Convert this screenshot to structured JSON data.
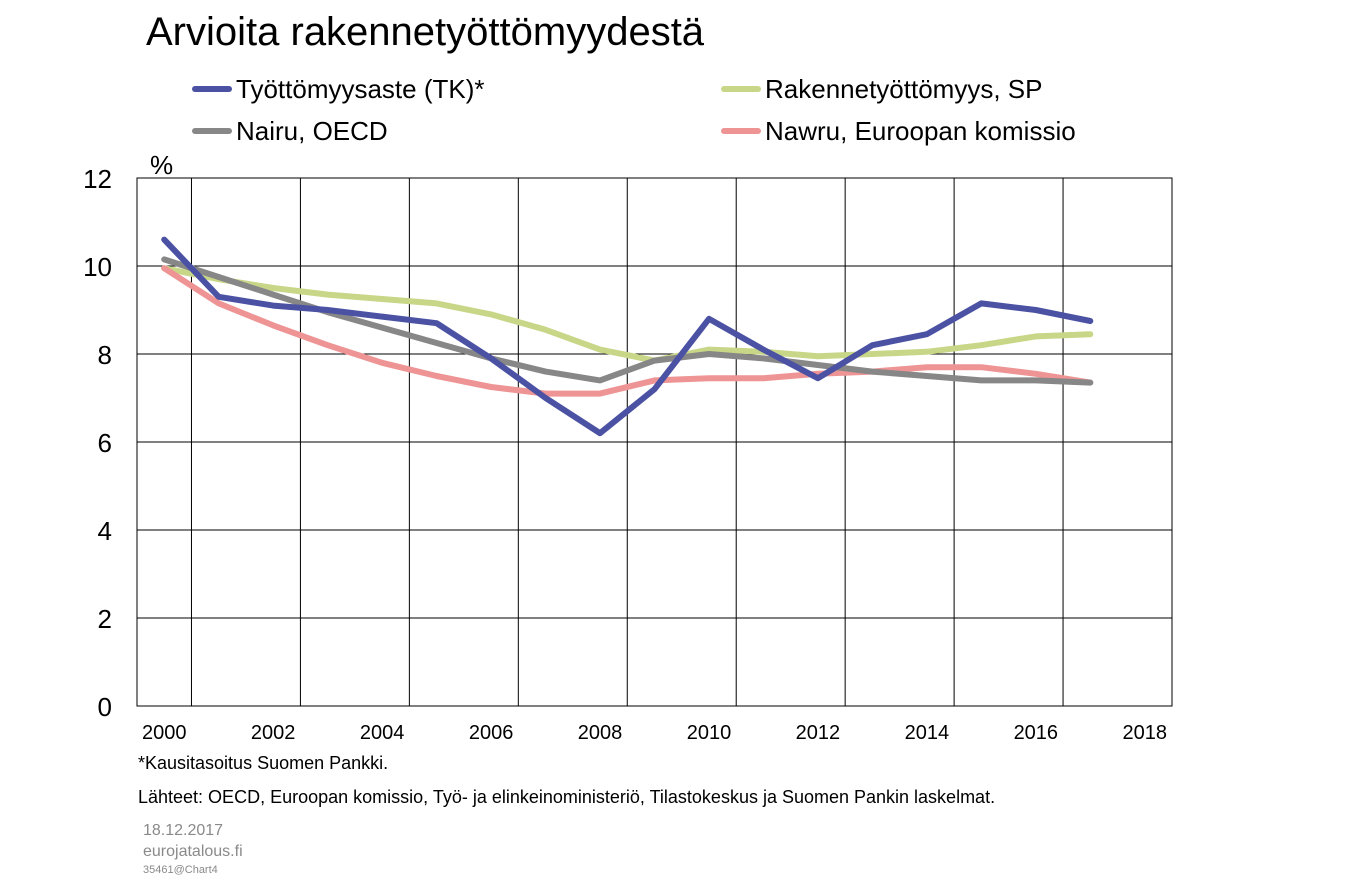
{
  "title": "Arvioita rakennetyöttömyydestä",
  "unit_label": "%",
  "footnote": "*Kausitasoitus Suomen Pankki.",
  "sources": "Lähteet: OECD, Euroopan komissio, Työ- ja elinkeinoministeriö,  Tilastokeskus ja Suomen Pankin laskelmat.",
  "date": "18.12.2017",
  "site": "eurojatalous.fi",
  "chart_id": "35461@Chart4",
  "chart_data": {
    "type": "line",
    "title": "Arvioita rakennetyöttömyydestä",
    "ylabel": "%",
    "ylim": [
      0,
      12
    ],
    "xlim": [
      1999.5,
      2018.5
    ],
    "yticks": [
      "0",
      "2",
      "4",
      "6",
      "8",
      "10",
      "12"
    ],
    "xticks": [
      "2000",
      "2002",
      "2004",
      "2006",
      "2008",
      "2010",
      "2012",
      "2014",
      "2016",
      "2018"
    ],
    "grid": true,
    "legend_position": "top",
    "x": [
      2000,
      2001,
      2002,
      2003,
      2004,
      2005,
      2006,
      2007,
      2008,
      2009,
      2010,
      2011,
      2012,
      2013,
      2014,
      2015,
      2016,
      2017
    ],
    "series": [
      {
        "name": "Työttömyysaste (TK)*",
        "color": "#4b52a3",
        "values": [
          10.6,
          9.3,
          9.1,
          9.0,
          8.85,
          8.7,
          7.9,
          7.0,
          6.2,
          7.2,
          8.8,
          8.1,
          7.45,
          8.2,
          8.45,
          9.15,
          9.0,
          8.75
        ]
      },
      {
        "name": "Rakennetyöttömyys, SP",
        "color": "#c8d688",
        "values": [
          9.95,
          9.7,
          9.5,
          9.35,
          9.25,
          9.15,
          8.9,
          8.55,
          8.1,
          7.85,
          8.1,
          8.05,
          7.95,
          8.0,
          8.05,
          8.2,
          8.4,
          8.45
        ]
      },
      {
        "name": "Nairu, OECD",
        "color": "#878787",
        "values": [
          10.15,
          9.75,
          9.35,
          8.95,
          8.6,
          8.25,
          7.9,
          7.6,
          7.4,
          7.85,
          8.0,
          7.9,
          7.75,
          7.6,
          7.5,
          7.4,
          7.4,
          7.35
        ]
      },
      {
        "name": "Nawru, Euroopan komissio",
        "color": "#ee9494",
        "values": [
          9.95,
          9.15,
          8.65,
          8.2,
          7.8,
          7.5,
          7.25,
          7.1,
          7.1,
          7.4,
          7.45,
          7.45,
          7.55,
          7.6,
          7.7,
          7.7,
          7.55,
          7.35
        ]
      }
    ]
  }
}
